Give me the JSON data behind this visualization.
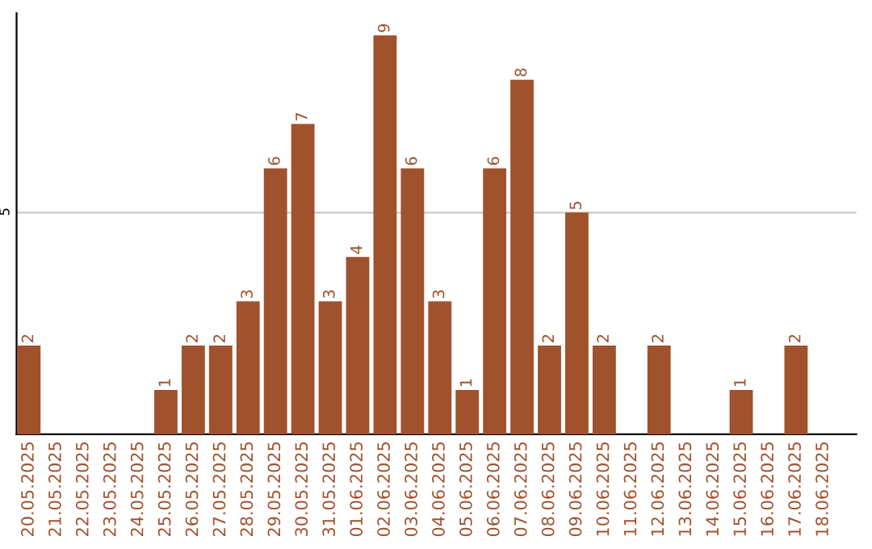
{
  "chart_data": {
    "type": "bar",
    "categories": [
      "20.05.2025",
      "21.05.2025",
      "22.05.2025",
      "23.05.2025",
      "24.05.2025",
      "25.05.2025",
      "26.05.2025",
      "27.05.2025",
      "28.05.2025",
      "29.05.2025",
      "30.05.2025",
      "31.05.2025",
      "01.06.2025",
      "02.06.2025",
      "03.06.2025",
      "04.06.2025",
      "05.06.2025",
      "06.06.2025",
      "07.06.2025",
      "08.06.2025",
      "09.06.2025",
      "10.06.2025",
      "11.06.2025",
      "12.06.2025",
      "13.06.2025",
      "14.06.2025",
      "15.06.2025",
      "16.06.2025",
      "17.06.2025",
      "18.06.2025"
    ],
    "values": [
      2,
      0,
      0,
      0,
      0,
      1,
      2,
      2,
      3,
      6,
      7,
      3,
      4,
      9,
      6,
      3,
      1,
      6,
      8,
      2,
      5,
      2,
      0,
      2,
      0,
      0,
      1,
      0,
      2,
      0
    ],
    "value_labels": [
      "2",
      null,
      null,
      null,
      null,
      "1",
      "2",
      "2",
      "3",
      "6",
      "7",
      "3",
      "4",
      "9",
      "6",
      "3",
      "1",
      "6",
      "8",
      "2",
      "5",
      "2",
      null,
      "2",
      null,
      null,
      "1",
      null,
      "2",
      null
    ],
    "color": "#a0522d",
    "ylim": [
      0,
      9.5
    ],
    "yticks": [
      5
    ],
    "grid": "y"
  }
}
